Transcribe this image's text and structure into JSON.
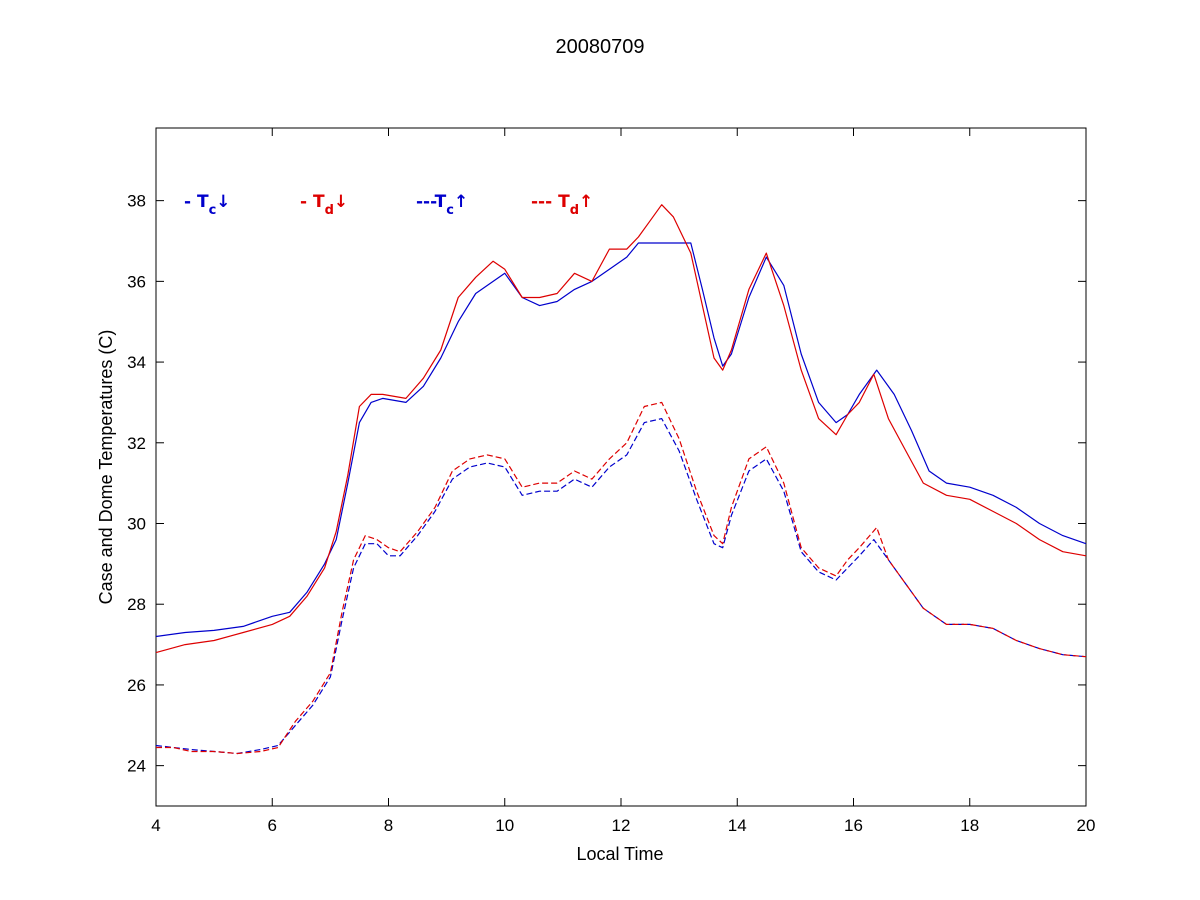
{
  "chart_data": {
    "type": "line",
    "title": "20080709",
    "xlabel": "Local Time",
    "ylabel": "Case and Dome Temperatures (C)",
    "xlim": [
      4,
      20
    ],
    "ylim": [
      23,
      39.8
    ],
    "xticks": [
      4,
      6,
      8,
      10,
      12,
      14,
      16,
      18,
      20
    ],
    "yticks": [
      24,
      26,
      28,
      30,
      32,
      34,
      36,
      38
    ],
    "grid": false,
    "legend_position": "top-left",
    "colors": {
      "blue": "#0000cc",
      "red": "#dd0000"
    },
    "legend": [
      {
        "prefix": "- T",
        "sub": "c",
        "arrow": "↓",
        "color": "#0000cc"
      },
      {
        "prefix": "- T",
        "sub": "d",
        "arrow": "↓",
        "color": "#dd0000"
      },
      {
        "prefix": "---T",
        "sub": "c",
        "arrow": "↑",
        "color": "#0000cc"
      },
      {
        "prefix": "--- T",
        "sub": "d",
        "arrow": "↑",
        "color": "#dd0000"
      }
    ],
    "series": [
      {
        "style": "solid",
        "color": "#0000cc",
        "x": [
          4.0,
          4.5,
          5.0,
          5.5,
          6.0,
          6.3,
          6.6,
          6.9,
          7.1,
          7.3,
          7.5,
          7.7,
          7.9,
          8.3,
          8.6,
          8.9,
          9.2,
          9.5,
          9.8,
          10.0,
          10.3,
          10.6,
          10.9,
          11.2,
          11.5,
          11.8,
          12.1,
          12.3,
          12.6,
          12.9,
          13.2,
          13.4,
          13.6,
          13.75,
          13.9,
          14.2,
          14.5,
          14.8,
          15.1,
          15.4,
          15.7,
          15.9,
          16.1,
          16.4,
          16.7,
          17.0,
          17.3,
          17.6,
          18.0,
          18.4,
          18.8,
          19.2,
          19.6,
          20.0
        ],
        "y": [
          27.2,
          27.3,
          27.35,
          27.45,
          27.7,
          27.8,
          28.3,
          29.0,
          29.6,
          31.0,
          32.5,
          33.0,
          33.1,
          33.0,
          33.4,
          34.1,
          35.0,
          35.7,
          36.0,
          36.2,
          35.6,
          35.4,
          35.5,
          35.8,
          36.0,
          36.3,
          36.6,
          36.95,
          36.95,
          36.95,
          36.95,
          35.8,
          34.6,
          33.9,
          34.2,
          35.6,
          36.6,
          35.9,
          34.2,
          33.0,
          32.5,
          32.7,
          33.2,
          33.8,
          33.2,
          32.3,
          31.3,
          31.0,
          30.9,
          30.7,
          30.4,
          30.0,
          29.7,
          29.5
        ]
      },
      {
        "style": "solid",
        "color": "#dd0000",
        "x": [
          4.0,
          4.5,
          5.0,
          5.5,
          6.0,
          6.3,
          6.6,
          6.9,
          7.1,
          7.3,
          7.5,
          7.7,
          7.9,
          8.3,
          8.6,
          8.9,
          9.2,
          9.5,
          9.8,
          10.0,
          10.3,
          10.6,
          10.9,
          11.2,
          11.5,
          11.8,
          12.1,
          12.3,
          12.5,
          12.7,
          12.9,
          13.2,
          13.4,
          13.6,
          13.75,
          13.9,
          14.2,
          14.5,
          14.8,
          15.1,
          15.4,
          15.7,
          15.9,
          16.1,
          16.35,
          16.6,
          16.9,
          17.2,
          17.6,
          18.0,
          18.4,
          18.8,
          19.2,
          19.6,
          20.0
        ],
        "y": [
          26.8,
          27.0,
          27.1,
          27.3,
          27.5,
          27.7,
          28.2,
          28.9,
          29.8,
          31.2,
          32.9,
          33.2,
          33.2,
          33.1,
          33.6,
          34.3,
          35.6,
          36.1,
          36.5,
          36.3,
          35.6,
          35.6,
          35.7,
          36.2,
          36.0,
          36.8,
          36.8,
          37.1,
          37.5,
          37.9,
          37.6,
          36.7,
          35.4,
          34.1,
          33.8,
          34.3,
          35.8,
          36.7,
          35.4,
          33.8,
          32.6,
          32.2,
          32.7,
          33.0,
          33.7,
          32.6,
          31.8,
          31.0,
          30.7,
          30.6,
          30.3,
          30.0,
          29.6,
          29.3,
          29.2
        ]
      },
      {
        "style": "dashed",
        "color": "#0000cc",
        "x": [
          4.0,
          4.3,
          4.6,
          5.0,
          5.4,
          5.8,
          6.1,
          6.4,
          6.7,
          7.0,
          7.2,
          7.4,
          7.6,
          7.8,
          8.0,
          8.2,
          8.5,
          8.8,
          9.1,
          9.4,
          9.7,
          10.0,
          10.3,
          10.6,
          10.9,
          11.2,
          11.5,
          11.8,
          12.1,
          12.4,
          12.7,
          13.0,
          13.3,
          13.6,
          13.75,
          13.9,
          14.2,
          14.5,
          14.8,
          15.1,
          15.4,
          15.7,
          15.9,
          16.1,
          16.35,
          16.6,
          16.9,
          17.2,
          17.6,
          18.0,
          18.4,
          18.8,
          19.2,
          19.6,
          20.0
        ],
        "y": [
          24.5,
          24.45,
          24.4,
          24.35,
          24.3,
          24.4,
          24.5,
          25.0,
          25.5,
          26.2,
          27.6,
          28.9,
          29.5,
          29.5,
          29.2,
          29.2,
          29.7,
          30.3,
          31.1,
          31.4,
          31.5,
          31.4,
          30.7,
          30.8,
          30.8,
          31.1,
          30.9,
          31.4,
          31.7,
          32.5,
          32.6,
          31.8,
          30.6,
          29.5,
          29.4,
          30.2,
          31.3,
          31.6,
          30.8,
          29.3,
          28.8,
          28.6,
          28.9,
          29.2,
          29.6,
          29.1,
          28.5,
          27.9,
          27.5,
          27.5,
          27.4,
          27.1,
          26.9,
          26.75,
          26.7
        ]
      },
      {
        "style": "dashed",
        "color": "#dd0000",
        "x": [
          4.0,
          4.3,
          4.6,
          5.0,
          5.4,
          5.8,
          6.1,
          6.4,
          6.7,
          7.0,
          7.2,
          7.4,
          7.6,
          7.8,
          8.0,
          8.2,
          8.5,
          8.8,
          9.1,
          9.4,
          9.7,
          10.0,
          10.3,
          10.6,
          10.9,
          11.2,
          11.5,
          11.8,
          12.1,
          12.4,
          12.7,
          13.0,
          13.3,
          13.6,
          13.75,
          13.9,
          14.2,
          14.5,
          14.8,
          15.1,
          15.4,
          15.7,
          15.9,
          16.1,
          16.4,
          16.6,
          16.9,
          17.2,
          17.6,
          18.0,
          18.4,
          18.8,
          19.2,
          19.6,
          20.0
        ],
        "y": [
          24.45,
          24.45,
          24.35,
          24.35,
          24.3,
          24.35,
          24.45,
          25.1,
          25.6,
          26.3,
          27.8,
          29.1,
          29.7,
          29.6,
          29.4,
          29.3,
          29.8,
          30.4,
          31.3,
          31.6,
          31.7,
          31.6,
          30.9,
          31.0,
          31.0,
          31.3,
          31.1,
          31.6,
          32.0,
          32.9,
          33.0,
          32.1,
          30.8,
          29.7,
          29.5,
          30.4,
          31.6,
          31.9,
          31.0,
          29.4,
          28.9,
          28.7,
          29.1,
          29.4,
          29.9,
          29.1,
          28.5,
          27.9,
          27.5,
          27.5,
          27.4,
          27.1,
          26.9,
          26.75,
          26.7
        ]
      }
    ]
  }
}
